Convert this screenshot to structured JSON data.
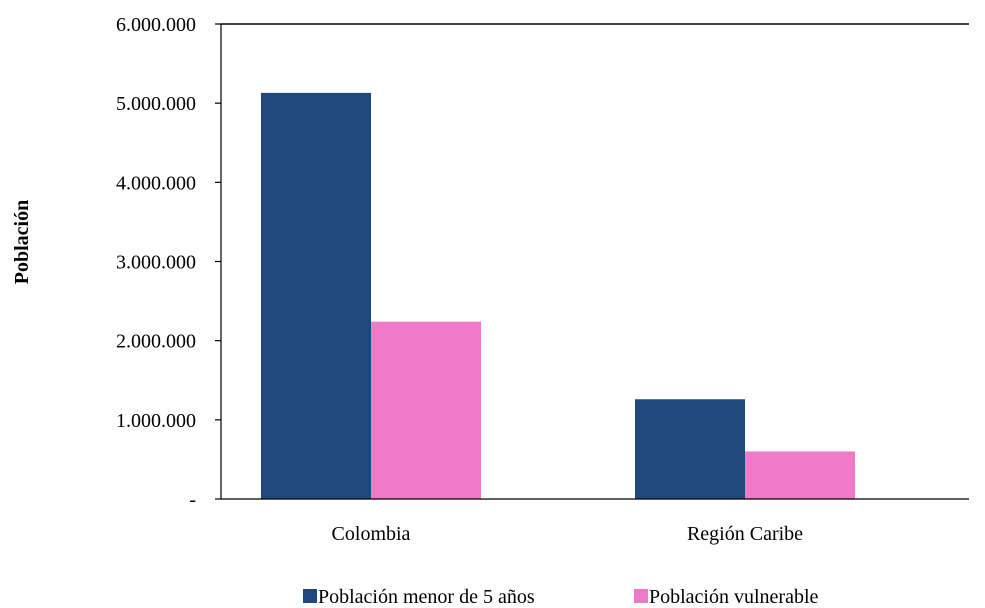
{
  "chart_data": {
    "type": "bar",
    "ylabel": "Población",
    "xlabel": "",
    "categories": [
      "Colombia",
      "Región Caribe"
    ],
    "series": [
      {
        "name": "Población menor de 5 años",
        "color": "#1f497d",
        "values": [
          5130000,
          1260000
        ]
      },
      {
        "name": "Población vulnerable",
        "color": "#ee7ac8",
        "values": [
          2240000,
          600000
        ]
      }
    ],
    "ylim": [
      0,
      6000000
    ],
    "yticks": [
      0,
      1000000,
      2000000,
      3000000,
      4000000,
      5000000,
      6000000
    ],
    "ytick_labels": [
      "-",
      "1.000.000",
      "2.000.000",
      "3.000.000",
      "4.000.000",
      "5.000.000",
      "6.000.000"
    ],
    "grid": false,
    "legend_position": "bottom"
  }
}
